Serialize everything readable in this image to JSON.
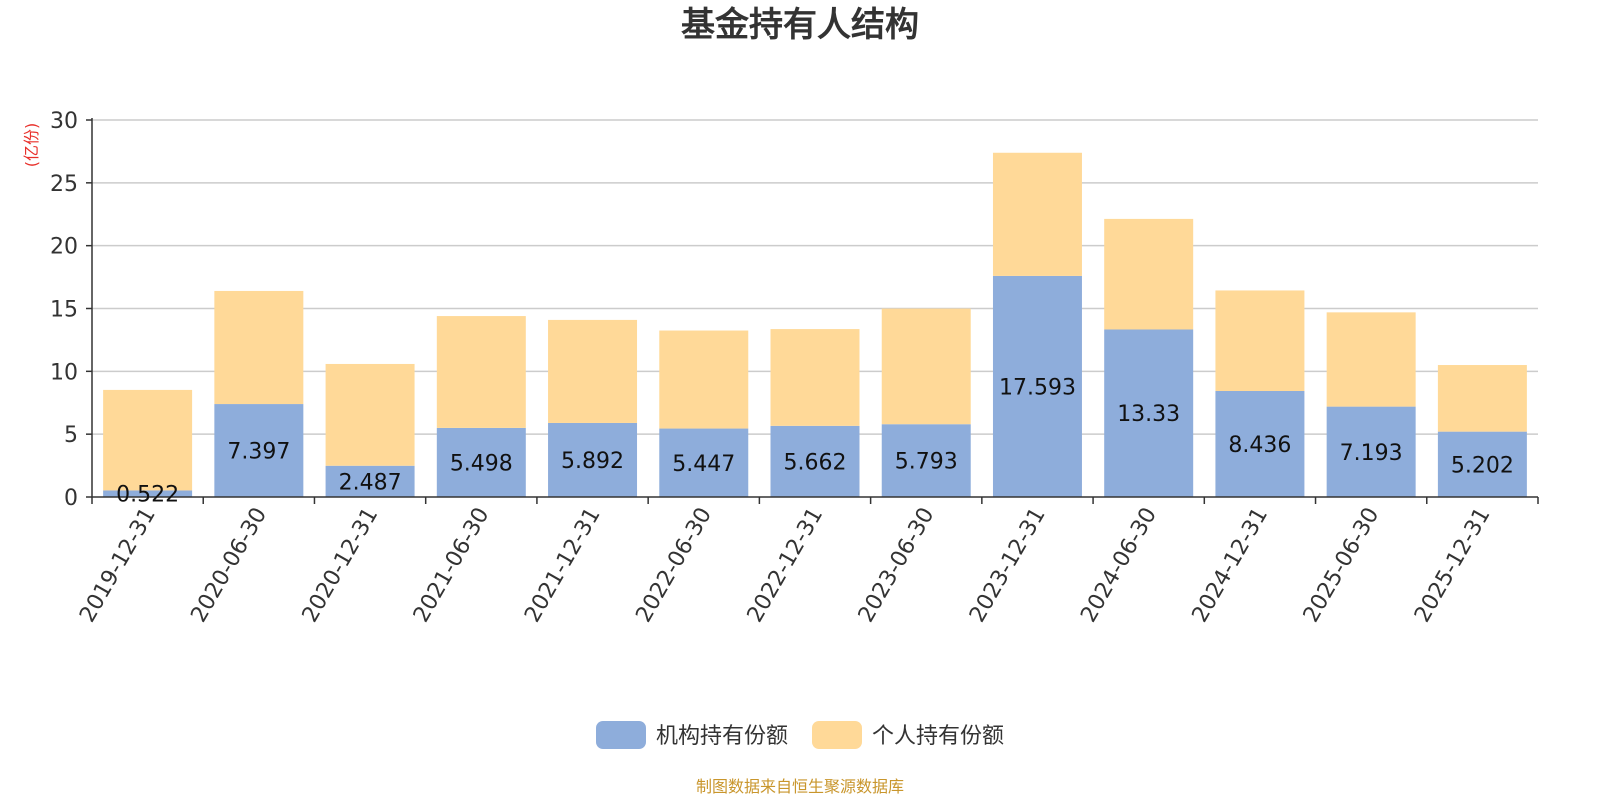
{
  "chart_data": {
    "type": "bar",
    "stacked": true,
    "title": "基金持有人结构",
    "y_unit": "(亿份)",
    "ylim": [
      0,
      30
    ],
    "y_ticks": [
      0,
      5,
      10,
      15,
      20,
      25,
      30
    ],
    "grid": true,
    "legend_position": "bottom",
    "categories": [
      "2019-12-31",
      "2020-06-30",
      "2020-12-31",
      "2021-06-30",
      "2021-12-31",
      "2022-06-30",
      "2022-12-31",
      "2023-06-30",
      "2023-12-31",
      "2024-06-30",
      "2024-12-31",
      "2025-06-30",
      "2025-12-31"
    ],
    "series": [
      {
        "name": "机构持有份额",
        "color": "#8EADDB",
        "values": [
          0.522,
          7.397,
          2.487,
          5.498,
          5.892,
          5.447,
          5.662,
          5.793,
          17.593,
          13.33,
          8.436,
          7.193,
          5.202
        ],
        "value_labels": [
          "0.522",
          "7.397",
          "2.487",
          "5.498",
          "5.892",
          "5.447",
          "5.662",
          "5.793",
          "17.593",
          "13.33",
          "8.436",
          "7.193",
          "5.202"
        ]
      },
      {
        "name": "个人持有份额",
        "color": "#FFD998",
        "values": [
          8.0,
          9.0,
          8.1,
          8.9,
          8.2,
          7.8,
          7.7,
          9.2,
          9.8,
          8.8,
          8.0,
          7.5,
          5.3
        ]
      }
    ],
    "source_note": "制图数据来自恒生聚源数据库",
    "unit_color": "#E8302B",
    "source_color": "#C9962C"
  }
}
